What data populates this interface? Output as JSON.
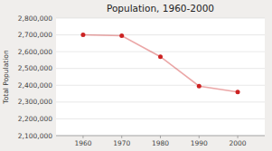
{
  "chart_data": {
    "type": "line",
    "title": "Population, 1960-2000",
    "ylabel": "Total Population",
    "x": [
      1960,
      1970,
      1980,
      1990,
      2000
    ],
    "values": [
      2700000,
      2695000,
      2570000,
      2395000,
      2360000
    ],
    "color": "#cc2222",
    "marker": "circle",
    "xlim": [
      1953,
      2007
    ],
    "ylim": [
      2100000,
      2800000
    ],
    "xticks": [
      1960,
      1970,
      1980,
      1990,
      2000
    ],
    "yticks": [
      {
        "value": 2100000,
        "label": "2,100,000"
      },
      {
        "value": 2200000,
        "label": "2,200,000"
      },
      {
        "value": 2300000,
        "label": "2,300,000"
      },
      {
        "value": 2400000,
        "label": "2,400,000"
      },
      {
        "value": 2500000,
        "label": "2,500,000"
      },
      {
        "value": 2600000,
        "label": "2,600,000"
      },
      {
        "value": 2700000,
        "label": "2,700,000"
      },
      {
        "value": 2800000,
        "label": "2,800,000"
      }
    ],
    "grid": true
  }
}
